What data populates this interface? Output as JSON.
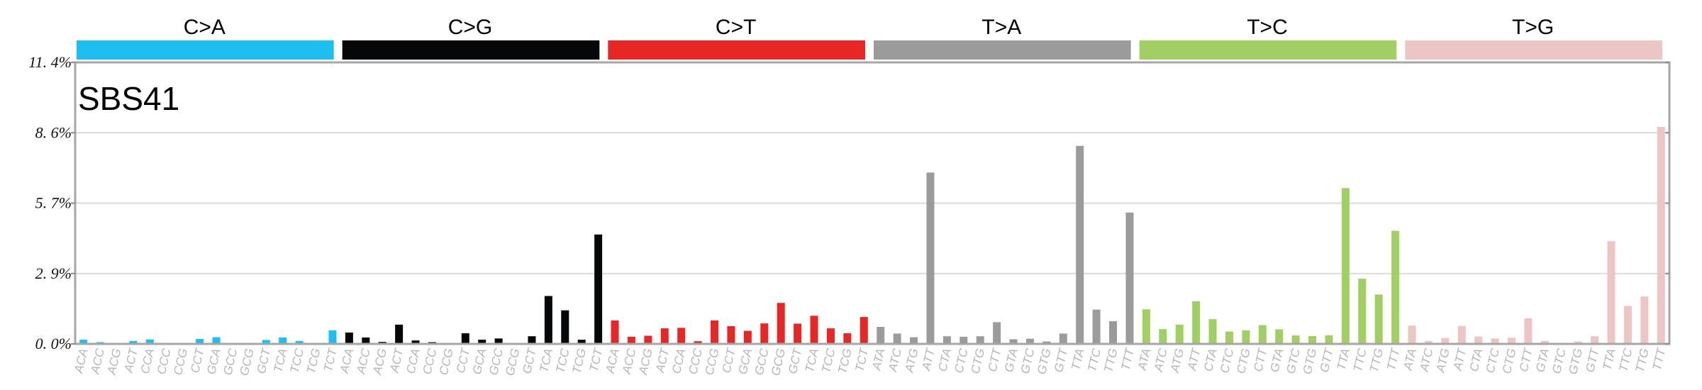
{
  "chart_data": {
    "type": "bar",
    "title": "SBS41",
    "yticks": [
      "0. 0%",
      "2. 9%",
      "5. 7%",
      "8. 6%",
      "11. 4%"
    ],
    "ylim": [
      0,
      11.4
    ],
    "grid": true,
    "legend": "none",
    "groups": [
      {
        "name": "C>A",
        "color": "#1ebff0",
        "categories": [
          "ACA",
          "ACC",
          "ACG",
          "ACT",
          "CCA",
          "CCC",
          "CCG",
          "CCT",
          "GCA",
          "GCC",
          "GCG",
          "GCT",
          "TCA",
          "TCC",
          "TCG",
          "TCT"
        ],
        "values": [
          0.17,
          0.07,
          0.02,
          0.12,
          0.18,
          0.03,
          0.01,
          0.2,
          0.27,
          0.01,
          0.01,
          0.16,
          0.26,
          0.12,
          0.02,
          0.55
        ]
      },
      {
        "name": "C>G",
        "color": "#050708",
        "categories": [
          "ACA",
          "ACC",
          "ACG",
          "ACT",
          "CCA",
          "CCC",
          "CCG",
          "CCT",
          "GCA",
          "GCC",
          "GCG",
          "GCT",
          "TCA",
          "TCC",
          "TCG",
          "TCT"
        ],
        "values": [
          0.46,
          0.26,
          0.08,
          0.78,
          0.14,
          0.07,
          0.01,
          0.43,
          0.17,
          0.22,
          0.01,
          0.31,
          1.94,
          1.36,
          0.17,
          4.43
        ]
      },
      {
        "name": "C>T",
        "color": "#e62725",
        "categories": [
          "ACA",
          "ACC",
          "ACG",
          "ACT",
          "CCA",
          "CCC",
          "CCG",
          "CCT",
          "GCA",
          "GCC",
          "GCG",
          "GCT",
          "TCA",
          "TCC",
          "TCG",
          "TCT"
        ],
        "values": [
          0.95,
          0.29,
          0.33,
          0.63,
          0.65,
          0.11,
          0.95,
          0.72,
          0.53,
          0.83,
          1.66,
          0.82,
          1.14,
          0.63,
          0.43,
          1.09
        ]
      },
      {
        "name": "T>A",
        "color": "#9b9b9b",
        "categories": [
          "ATA",
          "ATC",
          "ATG",
          "ATT",
          "CTA",
          "CTC",
          "CTG",
          "CTT",
          "GTA",
          "GTC",
          "GTG",
          "GTT",
          "TTA",
          "TTC",
          "TTG",
          "TTT"
        ],
        "values": [
          0.69,
          0.42,
          0.27,
          6.94,
          0.31,
          0.29,
          0.31,
          0.88,
          0.19,
          0.21,
          0.1,
          0.42,
          8.02,
          1.39,
          0.92,
          5.32
        ]
      },
      {
        "name": "T>C",
        "color": "#a1cf64",
        "categories": [
          "ATA",
          "ATC",
          "ATG",
          "ATT",
          "CTA",
          "CTC",
          "CTG",
          "CTT",
          "GTA",
          "GTC",
          "GTG",
          "GTT",
          "TTA",
          "TTC",
          "TTG",
          "TTT"
        ],
        "values": [
          1.4,
          0.6,
          0.78,
          1.73,
          1.0,
          0.5,
          0.55,
          0.76,
          0.59,
          0.34,
          0.32,
          0.35,
          6.31,
          2.64,
          2.0,
          4.58
        ]
      },
      {
        "name": "T>G",
        "color": "#ebc6c4",
        "categories": [
          "ATA",
          "ATC",
          "ATG",
          "ATT",
          "CTA",
          "CTC",
          "CTG",
          "CTT",
          "GTA",
          "GTC",
          "GTG",
          "GTT",
          "TTA",
          "TTC",
          "TTG",
          "TTT"
        ],
        "values": [
          0.74,
          0.12,
          0.24,
          0.73,
          0.3,
          0.22,
          0.25,
          1.04,
          0.12,
          0.02,
          0.1,
          0.31,
          4.16,
          1.54,
          1.92,
          8.79
        ]
      }
    ]
  }
}
